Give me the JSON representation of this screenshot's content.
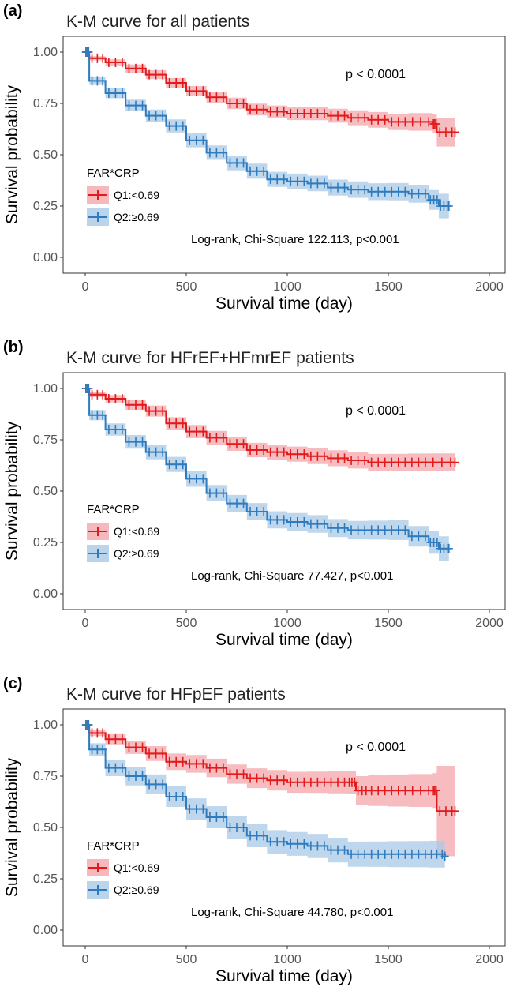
{
  "figure": {
    "legend_title": "FAR*CRP",
    "series_names": [
      "Q1:<0.69",
      "Q2:≥0.69"
    ],
    "colors": {
      "q1": "#e31a1c",
      "q1_band": "#f4a6a9",
      "q2": "#2e7bbf",
      "q2_band": "#a9c9e6"
    }
  },
  "chart_data": [
    {
      "type": "line",
      "panel_label": "(a)",
      "title": "K-M curve for all patients",
      "xlabel": "Survival time (day)",
      "ylabel": "Survival probability",
      "xlim": [
        0,
        2000
      ],
      "ylim": [
        0,
        1
      ],
      "xticks": [
        "0",
        "500",
        "1000",
        "1500",
        "2000"
      ],
      "yticks": [
        "0.00",
        "0.25",
        "0.50",
        "0.75",
        "1.00"
      ],
      "pvalue": "p < 0.0001",
      "stat": "Log-rank, Chi-Square 122.113, p<0.001",
      "series": [
        {
          "name": "Q1:<0.69",
          "x": [
            0,
            20,
            100,
            200,
            300,
            400,
            500,
            600,
            700,
            800,
            900,
            1000,
            1100,
            1200,
            1300,
            1400,
            1500,
            1600,
            1720,
            1740,
            1830
          ],
          "y": [
            1.0,
            0.97,
            0.95,
            0.92,
            0.89,
            0.85,
            0.81,
            0.78,
            0.75,
            0.72,
            0.71,
            0.7,
            0.7,
            0.69,
            0.68,
            0.67,
            0.66,
            0.66,
            0.65,
            0.61,
            0.61
          ],
          "ci_halfwidth": [
            0.0,
            0.01,
            0.015,
            0.02,
            0.022,
            0.024,
            0.025,
            0.027,
            0.028,
            0.029,
            0.03,
            0.031,
            0.032,
            0.034,
            0.036,
            0.038,
            0.04,
            0.043,
            0.046,
            0.07,
            0.07
          ]
        },
        {
          "name": "Q2:≥0.69",
          "x": [
            0,
            20,
            100,
            200,
            300,
            400,
            500,
            600,
            700,
            800,
            900,
            1000,
            1100,
            1200,
            1300,
            1400,
            1500,
            1600,
            1700,
            1750,
            1800
          ],
          "y": [
            1.0,
            0.86,
            0.8,
            0.74,
            0.69,
            0.64,
            0.57,
            0.51,
            0.46,
            0.42,
            0.38,
            0.37,
            0.36,
            0.34,
            0.33,
            0.32,
            0.32,
            0.31,
            0.28,
            0.25,
            0.25
          ],
          "ci_halfwidth": [
            0.0,
            0.02,
            0.025,
            0.028,
            0.03,
            0.032,
            0.034,
            0.035,
            0.036,
            0.037,
            0.037,
            0.038,
            0.038,
            0.039,
            0.04,
            0.041,
            0.042,
            0.044,
            0.048,
            0.06,
            0.06
          ]
        }
      ]
    },
    {
      "type": "line",
      "panel_label": "(b)",
      "title": "K-M curve for HFrEF+HFmrEF patients",
      "xlabel": "Survival time (day)",
      "ylabel": "Survival probability",
      "xlim": [
        0,
        2000
      ],
      "ylim": [
        0,
        1
      ],
      "xticks": [
        "0",
        "500",
        "1000",
        "1500",
        "2000"
      ],
      "yticks": [
        "0.00",
        "0.25",
        "0.50",
        "0.75",
        "1.00"
      ],
      "pvalue": "p < 0.0001",
      "stat": "Log-rank, Chi-Square 77.427, p<0.001",
      "series": [
        {
          "name": "Q1:<0.69",
          "x": [
            0,
            20,
            100,
            200,
            300,
            400,
            500,
            600,
            700,
            800,
            900,
            1000,
            1100,
            1200,
            1300,
            1400,
            1500,
            1600,
            1700,
            1830
          ],
          "y": [
            1.0,
            0.97,
            0.95,
            0.92,
            0.89,
            0.83,
            0.79,
            0.76,
            0.73,
            0.7,
            0.69,
            0.68,
            0.67,
            0.66,
            0.65,
            0.64,
            0.64,
            0.64,
            0.64,
            0.64
          ],
          "ci_halfwidth": [
            0.0,
            0.012,
            0.018,
            0.024,
            0.027,
            0.03,
            0.032,
            0.033,
            0.034,
            0.035,
            0.036,
            0.037,
            0.038,
            0.039,
            0.04,
            0.041,
            0.042,
            0.043,
            0.044,
            0.045
          ]
        },
        {
          "name": "Q2:≥0.69",
          "x": [
            0,
            20,
            100,
            200,
            300,
            400,
            500,
            600,
            700,
            800,
            900,
            1000,
            1100,
            1200,
            1300,
            1400,
            1500,
            1600,
            1700,
            1750,
            1800
          ],
          "y": [
            1.0,
            0.87,
            0.8,
            0.74,
            0.69,
            0.63,
            0.56,
            0.49,
            0.44,
            0.4,
            0.36,
            0.35,
            0.34,
            0.32,
            0.31,
            0.31,
            0.31,
            0.28,
            0.25,
            0.22,
            0.22
          ],
          "ci_halfwidth": [
            0.0,
            0.025,
            0.03,
            0.033,
            0.035,
            0.037,
            0.039,
            0.04,
            0.041,
            0.042,
            0.042,
            0.043,
            0.043,
            0.044,
            0.045,
            0.046,
            0.048,
            0.05,
            0.055,
            0.06,
            0.06
          ]
        }
      ]
    },
    {
      "type": "line",
      "panel_label": "(c)",
      "title": "K-M curve for HFpEF patients",
      "xlabel": "Survival time (day)",
      "ylabel": "Survival probability",
      "xlim": [
        0,
        2000
      ],
      "ylim": [
        0,
        1
      ],
      "xticks": [
        "0",
        "500",
        "1000",
        "1500",
        "2000"
      ],
      "yticks": [
        "0.00",
        "0.25",
        "0.50",
        "0.75",
        "1.00"
      ],
      "pvalue": "p < 0.0001",
      "stat": "Log-rank, Chi-Square 44.780, p<0.001",
      "series": [
        {
          "name": "Q1:<0.69",
          "x": [
            0,
            20,
            100,
            200,
            300,
            400,
            500,
            600,
            700,
            800,
            900,
            1000,
            1100,
            1200,
            1300,
            1340,
            1400,
            1500,
            1600,
            1720,
            1740,
            1830
          ],
          "y": [
            1.0,
            0.96,
            0.93,
            0.89,
            0.86,
            0.82,
            0.81,
            0.79,
            0.76,
            0.74,
            0.73,
            0.72,
            0.72,
            0.72,
            0.72,
            0.68,
            0.68,
            0.68,
            0.68,
            0.68,
            0.58,
            0.58
          ],
          "ci_halfwidth": [
            0.0,
            0.015,
            0.025,
            0.032,
            0.036,
            0.04,
            0.043,
            0.045,
            0.047,
            0.048,
            0.05,
            0.051,
            0.052,
            0.054,
            0.056,
            0.07,
            0.075,
            0.078,
            0.08,
            0.085,
            0.22,
            0.22
          ]
        },
        {
          "name": "Q2:≥0.69",
          "x": [
            0,
            20,
            100,
            200,
            300,
            400,
            500,
            600,
            700,
            800,
            900,
            1000,
            1100,
            1200,
            1300,
            1400,
            1500,
            1600,
            1700,
            1780
          ],
          "y": [
            1.0,
            0.88,
            0.79,
            0.75,
            0.71,
            0.65,
            0.59,
            0.55,
            0.5,
            0.46,
            0.43,
            0.42,
            0.41,
            0.39,
            0.37,
            0.37,
            0.37,
            0.37,
            0.37,
            0.36
          ],
          "ci_halfwidth": [
            0.0,
            0.03,
            0.04,
            0.045,
            0.048,
            0.05,
            0.052,
            0.054,
            0.055,
            0.056,
            0.057,
            0.058,
            0.059,
            0.06,
            0.061,
            0.062,
            0.063,
            0.064,
            0.065,
            0.066
          ]
        }
      ]
    }
  ]
}
